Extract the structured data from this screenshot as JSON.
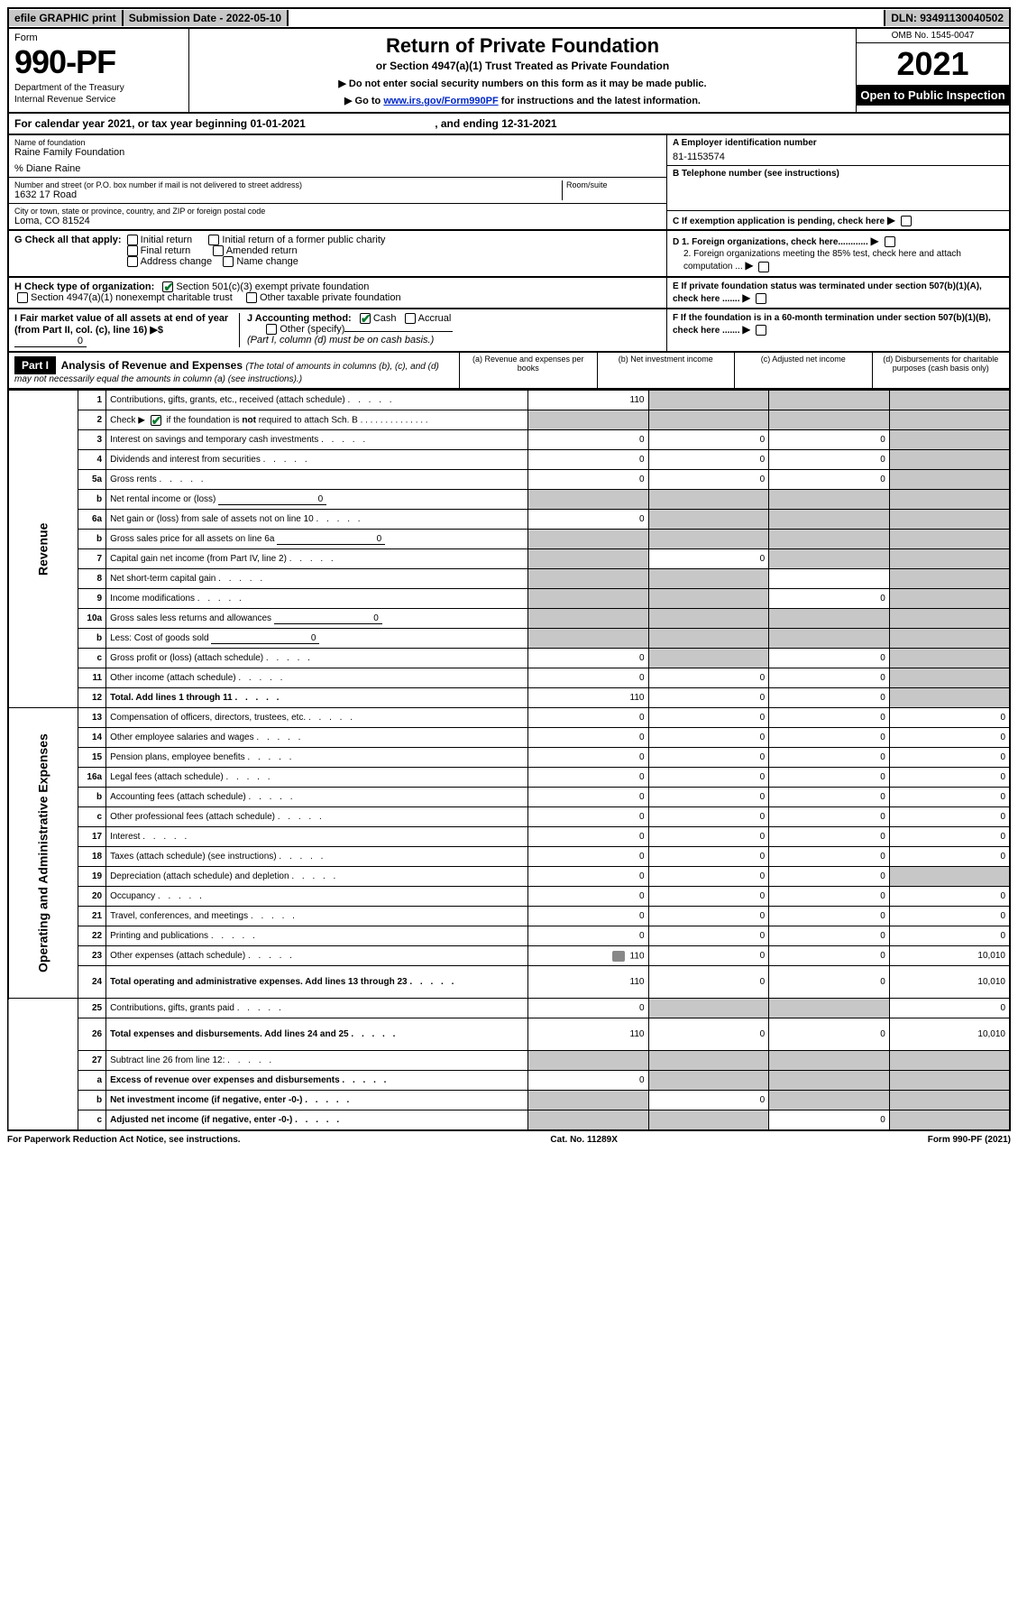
{
  "topbar": {
    "efile": "efile GRAPHIC print",
    "sub_date_label": "Submission Date - 2022-05-10",
    "dln": "DLN: 93491130040502"
  },
  "header": {
    "form_label": "Form",
    "form_number": "990-PF",
    "dept1": "Department of the Treasury",
    "dept2": "Internal Revenue Service",
    "title": "Return of Private Foundation",
    "subtitle": "or Section 4947(a)(1) Trust Treated as Private Foundation",
    "note1": "▶ Do not enter social security numbers on this form as it may be made public.",
    "note2_pre": "▶ Go to ",
    "note2_link": "www.irs.gov/Form990PF",
    "note2_post": " for instructions and the latest information.",
    "omb": "OMB No. 1545-0047",
    "year": "2021",
    "open_pub": "Open to Public Inspection"
  },
  "cal_year": {
    "pre": "For calendar year 2021, or tax year beginning ",
    "begin": "01-01-2021",
    "mid": " , and ending ",
    "end": "12-31-2021"
  },
  "info": {
    "name_lbl": "Name of foundation",
    "name_val": "Raine Family Foundation",
    "care_of": "% Diane Raine",
    "addr_lbl": "Number and street (or P.O. box number if mail is not delivered to street address)",
    "addr_val": "1632 17 Road",
    "room_lbl": "Room/suite",
    "city_lbl": "City or town, state or province, country, and ZIP or foreign postal code",
    "city_val": "Loma, CO  81524",
    "ein_lbl": "A Employer identification number",
    "ein_val": "81-1153574",
    "phone_lbl": "B Telephone number (see instructions)",
    "c_lbl": "C If exemption application is pending, check here",
    "d1_lbl": "D 1. Foreign organizations, check here............",
    "d2_lbl": "2. Foreign organizations meeting the 85% test, check here and attach computation ...",
    "e_lbl": "E  If private foundation status was terminated under section 507(b)(1)(A), check here .......",
    "f_lbl": "F  If the foundation is in a 60-month termination under section 507(b)(1)(B), check here .......",
    "g_lbl": "G Check all that apply:",
    "g_opts": [
      "Initial return",
      "Initial return of a former public charity",
      "Final return",
      "Amended return",
      "Address change",
      "Name change"
    ],
    "h_lbl": "H Check type of organization:",
    "h_opt1": "Section 501(c)(3) exempt private foundation",
    "h_opt2": "Section 4947(a)(1) nonexempt charitable trust",
    "h_opt3": "Other taxable private foundation",
    "i_lbl": "I Fair market value of all assets at end of year (from Part II, col. (c), line 16) ▶$ ",
    "i_val": "0",
    "j_lbl": "J Accounting method:",
    "j_cash": "Cash",
    "j_accrual": "Accrual",
    "j_other": "Other (specify)",
    "j_note": "(Part I, column (d) must be on cash basis.)"
  },
  "part1": {
    "label": "Part I",
    "title": "Analysis of Revenue and Expenses ",
    "title_note": "(The total of amounts in columns (b), (c), and (d) may not necessarily equal the amounts in column (a) (see instructions).)",
    "col_a": "(a)   Revenue and expenses per books",
    "col_b": "(b)   Net investment income",
    "col_c": "(c)   Adjusted net income",
    "col_d": "(d)   Disbursements for charitable purposes (cash basis only)"
  },
  "sidelabels": {
    "rev": "Revenue",
    "exp": "Operating and Administrative Expenses"
  },
  "rows": [
    {
      "n": "1",
      "d": "Contributions, gifts, grants, etc., received (attach schedule)",
      "a": "110",
      "b": "",
      "c": "",
      "dd": "",
      "sb": true,
      "sc": true,
      "sd": true
    },
    {
      "n": "2",
      "d": "Check ▶ ☑ if the foundation is not required to attach Sch. B",
      "a": "",
      "b": "",
      "c": "",
      "dd": "",
      "sa": true,
      "sb": true,
      "sc": true,
      "sd": true,
      "checkrow": true
    },
    {
      "n": "3",
      "d": "Interest on savings and temporary cash investments",
      "a": "0",
      "b": "0",
      "c": "0",
      "dd": "",
      "sd": true
    },
    {
      "n": "4",
      "d": "Dividends and interest from securities",
      "a": "0",
      "b": "0",
      "c": "0",
      "dd": "",
      "sd": true
    },
    {
      "n": "5a",
      "d": "Gross rents",
      "a": "0",
      "b": "0",
      "c": "0",
      "dd": "",
      "sd": true
    },
    {
      "n": "b",
      "d": "Net rental income or (loss)",
      "inline": "0",
      "a": "",
      "b": "",
      "c": "",
      "dd": "",
      "sa": true,
      "sb": true,
      "sc": true,
      "sd": true
    },
    {
      "n": "6a",
      "d": "Net gain or (loss) from sale of assets not on line 10",
      "a": "0",
      "b": "",
      "c": "",
      "dd": "",
      "sb": true,
      "sc": true,
      "sd": true
    },
    {
      "n": "b",
      "d": "Gross sales price for all assets on line 6a",
      "inline": "0",
      "a": "",
      "b": "",
      "c": "",
      "dd": "",
      "sa": true,
      "sb": true,
      "sc": true,
      "sd": true
    },
    {
      "n": "7",
      "d": "Capital gain net income (from Part IV, line 2)",
      "a": "",
      "b": "0",
      "c": "",
      "dd": "",
      "sa": true,
      "sc": true,
      "sd": true
    },
    {
      "n": "8",
      "d": "Net short-term capital gain",
      "a": "",
      "b": "",
      "c": "",
      "dd": "",
      "sa": true,
      "sb": true,
      "sd": true
    },
    {
      "n": "9",
      "d": "Income modifications",
      "a": "",
      "b": "",
      "c": "0",
      "dd": "",
      "sa": true,
      "sb": true,
      "sd": true
    },
    {
      "n": "10a",
      "d": "Gross sales less returns and allowances",
      "inline": "0",
      "a": "",
      "b": "",
      "c": "",
      "dd": "",
      "sa": true,
      "sb": true,
      "sc": true,
      "sd": true
    },
    {
      "n": "b",
      "d": "Less: Cost of goods sold",
      "inline": "0",
      "a": "",
      "b": "",
      "c": "",
      "dd": "",
      "sa": true,
      "sb": true,
      "sc": true,
      "sd": true
    },
    {
      "n": "c",
      "d": "Gross profit or (loss) (attach schedule)",
      "a": "0",
      "b": "",
      "c": "0",
      "dd": "",
      "sb": true,
      "sd": true
    },
    {
      "n": "11",
      "d": "Other income (attach schedule)",
      "a": "0",
      "b": "0",
      "c": "0",
      "dd": "",
      "sd": true
    },
    {
      "n": "12",
      "d": "Total. Add lines 1 through 11",
      "a": "110",
      "b": "0",
      "c": "0",
      "dd": "",
      "sd": true,
      "bold": true
    },
    {
      "n": "13",
      "d": "Compensation of officers, directors, trustees, etc.",
      "a": "0",
      "b": "0",
      "c": "0",
      "dd": "0"
    },
    {
      "n": "14",
      "d": "Other employee salaries and wages",
      "a": "0",
      "b": "0",
      "c": "0",
      "dd": "0"
    },
    {
      "n": "15",
      "d": "Pension plans, employee benefits",
      "a": "0",
      "b": "0",
      "c": "0",
      "dd": "0"
    },
    {
      "n": "16a",
      "d": "Legal fees (attach schedule)",
      "a": "0",
      "b": "0",
      "c": "0",
      "dd": "0"
    },
    {
      "n": "b",
      "d": "Accounting fees (attach schedule)",
      "a": "0",
      "b": "0",
      "c": "0",
      "dd": "0"
    },
    {
      "n": "c",
      "d": "Other professional fees (attach schedule)",
      "a": "0",
      "b": "0",
      "c": "0",
      "dd": "0"
    },
    {
      "n": "17",
      "d": "Interest",
      "a": "0",
      "b": "0",
      "c": "0",
      "dd": "0"
    },
    {
      "n": "18",
      "d": "Taxes (attach schedule) (see instructions)",
      "a": "0",
      "b": "0",
      "c": "0",
      "dd": "0"
    },
    {
      "n": "19",
      "d": "Depreciation (attach schedule) and depletion",
      "a": "0",
      "b": "0",
      "c": "0",
      "dd": "",
      "sd": true
    },
    {
      "n": "20",
      "d": "Occupancy",
      "a": "0",
      "b": "0",
      "c": "0",
      "dd": "0"
    },
    {
      "n": "21",
      "d": "Travel, conferences, and meetings",
      "a": "0",
      "b": "0",
      "c": "0",
      "dd": "0"
    },
    {
      "n": "22",
      "d": "Printing and publications",
      "a": "0",
      "b": "0",
      "c": "0",
      "dd": "0"
    },
    {
      "n": "23",
      "d": "Other expenses (attach schedule)",
      "a": "110",
      "b": "0",
      "c": "0",
      "dd": "10,010",
      "icon": true
    },
    {
      "n": "24",
      "d": "Total operating and administrative expenses. Add lines 13 through 23",
      "a": "110",
      "b": "0",
      "c": "0",
      "dd": "10,010",
      "bold": true,
      "tall": true
    },
    {
      "n": "25",
      "d": "Contributions, gifts, grants paid",
      "a": "0",
      "b": "",
      "c": "",
      "dd": "0",
      "sb": true,
      "sc": true
    },
    {
      "n": "26",
      "d": "Total expenses and disbursements. Add lines 24 and 25",
      "a": "110",
      "b": "0",
      "c": "0",
      "dd": "10,010",
      "bold": true,
      "tall": true
    },
    {
      "n": "27",
      "d": "Subtract line 26 from line 12:",
      "a": "",
      "b": "",
      "c": "",
      "dd": "",
      "sa": true,
      "sb": true,
      "sc": true,
      "sd": true
    },
    {
      "n": "a",
      "d": "Excess of revenue over expenses and disbursements",
      "a": "0",
      "b": "",
      "c": "",
      "dd": "",
      "sb": true,
      "sc": true,
      "sd": true,
      "bold": true
    },
    {
      "n": "b",
      "d": "Net investment income (if negative, enter -0-)",
      "a": "",
      "b": "0",
      "c": "",
      "dd": "",
      "sa": true,
      "sc": true,
      "sd": true,
      "bold": true
    },
    {
      "n": "c",
      "d": "Adjusted net income (if negative, enter -0-)",
      "a": "",
      "b": "",
      "c": "0",
      "dd": "",
      "sa": true,
      "sb": true,
      "sd": true,
      "bold": true
    }
  ],
  "footer": {
    "left": "For Paperwork Reduction Act Notice, see instructions.",
    "mid": "Cat. No. 11289X",
    "right": "Form 990-PF (2021)"
  }
}
